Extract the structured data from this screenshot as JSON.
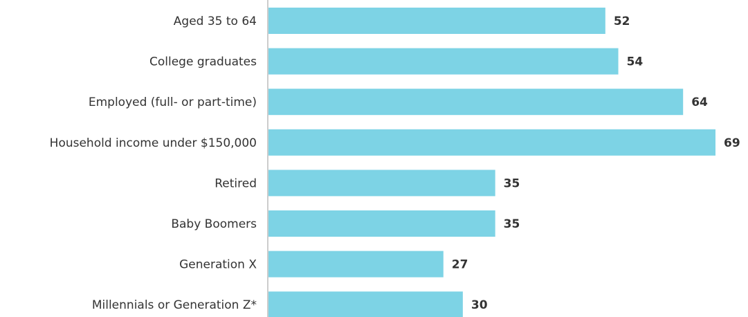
{
  "chart_data": {
    "type": "bar",
    "orientation": "horizontal",
    "categories": [
      "Aged 35 to 64",
      "College graduates",
      "Employed (full- or part-time)",
      "Household income under $150,000",
      "Retired",
      "Baby Boomers",
      "Generation X",
      "Millennials or Generation Z*"
    ],
    "values": [
      52,
      54,
      64,
      69,
      35,
      35,
      27,
      30
    ],
    "color": "#7dd3e5"
  }
}
